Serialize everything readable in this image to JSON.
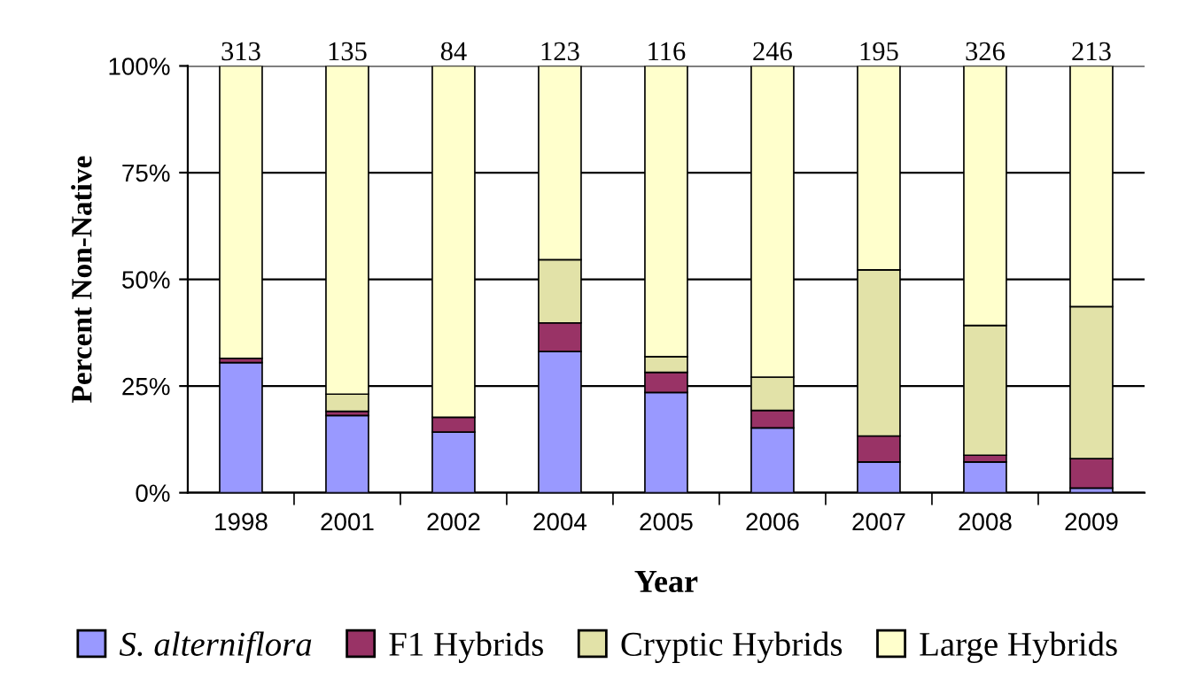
{
  "chart_data": {
    "type": "bar",
    "stacked": true,
    "xlabel": "Year",
    "ylabel": "Percent Non-Native",
    "categories": [
      "1998",
      "2001",
      "2002",
      "2004",
      "2005",
      "2006",
      "2007",
      "2008",
      "2009"
    ],
    "series": [
      {
        "name": "S. alterniflora",
        "color": "#9999ff",
        "values": [
          30.5,
          18.1,
          14.2,
          33.1,
          23.5,
          15.2,
          7.2,
          7.2,
          1.1
        ]
      },
      {
        "name": "F1 Hybrids",
        "color": "#993366",
        "values": [
          1.0,
          1.0,
          3.5,
          6.7,
          4.7,
          4.1,
          6.1,
          1.6,
          6.9
        ]
      },
      {
        "name": "Cryptic Hybrids",
        "color": "#e2e2a8",
        "values": [
          null,
          4.0,
          null,
          14.8,
          3.7,
          7.8,
          38.9,
          30.4,
          35.6
        ]
      },
      {
        "name": "Large Hybrids",
        "color": "#ffffcc",
        "values": [
          68.5,
          76.9,
          82.3,
          45.4,
          68.1,
          72.9,
          47.8,
          60.8,
          56.4
        ]
      }
    ],
    "ylim": [
      0,
      100
    ],
    "yticks": [
      {
        "value": 0,
        "label": "0%"
      },
      {
        "value": 25,
        "label": "25%"
      },
      {
        "value": 50,
        "label": "50%"
      },
      {
        "value": 75,
        "label": "75%"
      },
      {
        "value": 100,
        "label": "100%"
      }
    ],
    "annotations": [
      {
        "text": "313",
        "x": "1998",
        "y": 100
      },
      {
        "text": "135",
        "x": "2001",
        "y": 100
      },
      {
        "text": "84",
        "x": "2002",
        "y": 100
      },
      {
        "text": "123",
        "x": "2004",
        "y": 100
      },
      {
        "text": "116",
        "x": "2005",
        "y": 100
      },
      {
        "text": "246",
        "x": "2006",
        "y": 100
      },
      {
        "text": "195",
        "x": "2007",
        "y": 100
      },
      {
        "text": "326",
        "x": "2008",
        "y": 100
      },
      {
        "text": "213",
        "x": "2009",
        "y": 100
      }
    ],
    "grid": "y",
    "legend": "bottom"
  }
}
